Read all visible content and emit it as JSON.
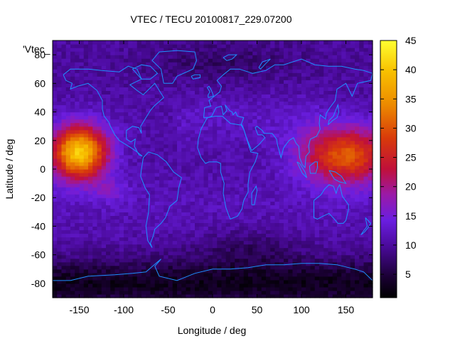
{
  "chart_data": {
    "type": "heatmap",
    "title": "VTEC / TECU 20100817_229.07200",
    "xlabel": "Longitude / deg",
    "ylabel": "Latitude / deg",
    "series_label": "'Vtec_",
    "xlim": [
      -180,
      180
    ],
    "ylim": [
      -90,
      90
    ],
    "x_ticks": [
      -150,
      -100,
      -50,
      0,
      50,
      100,
      150
    ],
    "y_ticks": [
      -80,
      -60,
      -40,
      -20,
      0,
      20,
      40,
      60,
      80
    ],
    "colorbar": {
      "range": [
        1,
        45
      ],
      "ticks": [
        5,
        10,
        15,
        20,
        25,
        30,
        35,
        40,
        45
      ],
      "palette": "black-purple-red-orange-yellow"
    },
    "coastline_color": "#1e90ff",
    "features": [
      {
        "name": "equatorial-anomaly-pacific",
        "lon_range": [
          -180,
          -95
        ],
        "lat_range": [
          -20,
          30
        ],
        "vtec_max": 42
      },
      {
        "name": "equatorial-anomaly-asia",
        "lon_range": [
          85,
          180
        ],
        "lat_range": [
          -15,
          30
        ],
        "vtec_max": 34
      },
      {
        "name": "background",
        "vtec_typical": 10
      },
      {
        "name": "polar-minimum",
        "lat_range": [
          -90,
          -60
        ],
        "vtec_typical": 3
      }
    ]
  }
}
